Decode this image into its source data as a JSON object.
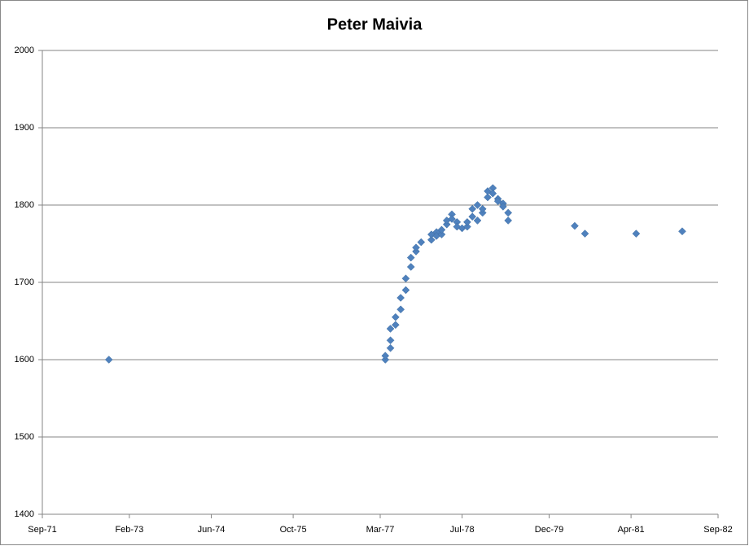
{
  "chart_data": {
    "type": "scatter",
    "title": "Peter Maivia",
    "series": [
      {
        "name": "Peter Maivia",
        "color": "#4f81bd",
        "x": [
          "1972-10",
          "1977-04",
          "1977-04",
          "1977-05",
          "1977-05",
          "1977-05",
          "1977-06",
          "1977-06",
          "1977-07",
          "1977-07",
          "1977-08",
          "1977-08",
          "1977-09",
          "1977-09",
          "1977-10",
          "1977-10",
          "1977-11",
          "1978-01",
          "1978-01",
          "1978-02",
          "1978-02",
          "1978-03",
          "1978-03",
          "1978-04",
          "1978-04",
          "1978-05",
          "1978-05",
          "1978-06",
          "1978-06",
          "1978-07",
          "1978-08",
          "1978-08",
          "1978-09",
          "1978-09",
          "1978-10",
          "1978-10",
          "1978-11",
          "1978-11",
          "1978-12",
          "1978-12",
          "1979-01",
          "1979-01",
          "1979-02",
          "1979-02",
          "1979-03",
          "1979-03",
          "1979-04",
          "1979-04",
          "1980-05",
          "1980-07",
          "1981-05",
          "1982-02"
        ],
        "values": [
          1600,
          1600,
          1605,
          1615,
          1625,
          1640,
          1645,
          1655,
          1665,
          1680,
          1690,
          1705,
          1720,
          1732,
          1740,
          1745,
          1752,
          1755,
          1762,
          1765,
          1760,
          1762,
          1768,
          1775,
          1780,
          1788,
          1782,
          1778,
          1772,
          1770,
          1772,
          1778,
          1785,
          1795,
          1800,
          1780,
          1790,
          1795,
          1810,
          1818,
          1822,
          1815,
          1808,
          1805,
          1802,
          1798,
          1790,
          1780,
          1773,
          1763,
          1763,
          1766
        ]
      }
    ],
    "xlim": [
      "1971-09",
      "1982-09"
    ],
    "xticks": [
      {
        "value": "1971-09",
        "label": "Sep-71"
      },
      {
        "value": "1973-02",
        "label": "Feb-73"
      },
      {
        "value": "1974-06",
        "label": "Jun-74"
      },
      {
        "value": "1975-10",
        "label": "Oct-75"
      },
      {
        "value": "1977-03",
        "label": "Mar-77"
      },
      {
        "value": "1978-07",
        "label": "Jul-78"
      },
      {
        "value": "1979-12",
        "label": "Dec-79"
      },
      {
        "value": "1981-04",
        "label": "Apr-81"
      },
      {
        "value": "1982-09",
        "label": "Sep-82"
      }
    ],
    "ylim": [
      1400,
      2000
    ],
    "yticks": [
      1400,
      1500,
      1600,
      1700,
      1800,
      1900,
      2000
    ],
    "grid": true
  }
}
